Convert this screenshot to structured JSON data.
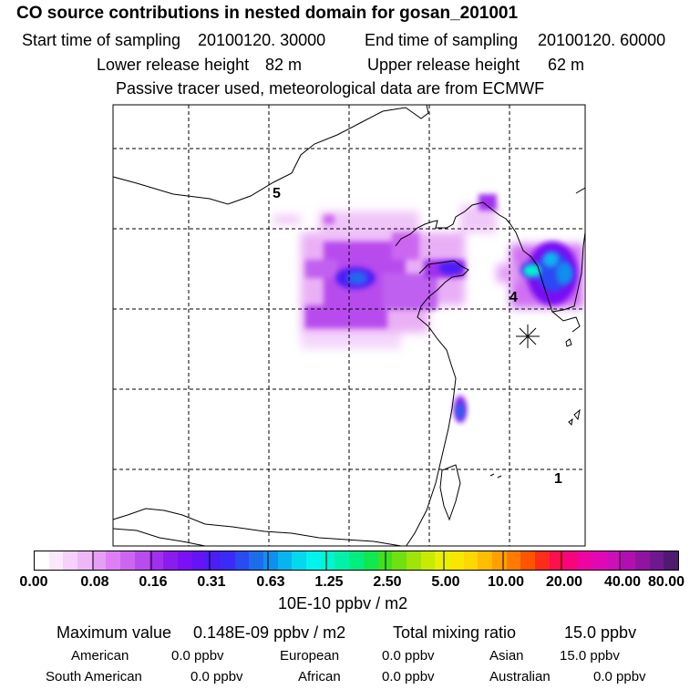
{
  "header": {
    "title": "CO  source contributions in nested domain for gosan_201001",
    "start_label": "Start time of sampling",
    "start_value": "20100120. 30000",
    "end_label": "End time of sampling",
    "end_value": "20100120. 60000",
    "lower_label": "Lower release height",
    "lower_value": "82 m",
    "upper_label": "Upper release height",
    "upper_value": "62 m",
    "info": "Passive tracer used, meteorological data are from ECMWF"
  },
  "map": {
    "markers": [
      "5",
      "4",
      "1"
    ],
    "station_symbol": "asterisk"
  },
  "colorbar": {
    "colors": [
      "#ffffff",
      "#fbe8fd",
      "#f5d1fb",
      "#eeb8f8",
      "#e79ef6",
      "#de80f4",
      "#cc66f0",
      "#b84cee",
      "#a030ee",
      "#8a1cee",
      "#7a10f4",
      "#6414f6",
      "#4c1ef6",
      "#3a2cf6",
      "#2a4af2",
      "#1c6cee",
      "#1090ee",
      "#08b4ee",
      "#04d8ee",
      "#00f4ee",
      "#00f4d0",
      "#00f2a8",
      "#00ee80",
      "#10e850",
      "#40e020",
      "#70e010",
      "#a0e408",
      "#c8ea04",
      "#e8f000",
      "#f8e800",
      "#ffd800",
      "#ffbe00",
      "#ffa000",
      "#ff7c00",
      "#ff5400",
      "#ff2c1c",
      "#ff104c",
      "#f8047c",
      "#ee04a0",
      "#e008b4",
      "#cc10b8",
      "#b010b0",
      "#9014a0",
      "#701890",
      "#501a70"
    ],
    "tick_labels": [
      "0.00",
      "0.08",
      "0.16",
      "0.31",
      "0.63",
      "1.25",
      "2.50",
      "5.00",
      "10.00",
      "20.00",
      "40.00",
      "80.00"
    ],
    "units": "10E-10 ppbv / m2"
  },
  "summary": {
    "max_label": "Maximum value",
    "max_value": "0.148E-09 ppbv / m2",
    "total_label": "Total mixing ratio",
    "total_value": "15.0 ppbv",
    "regions": [
      {
        "name": "American",
        "value": "0.0 ppbv"
      },
      {
        "name": "European",
        "value": "0.0 ppbv"
      },
      {
        "name": "Asian",
        "value": "15.0 ppbv"
      },
      {
        "name": "South American",
        "value": "0.0 ppbv"
      },
      {
        "name": "African",
        "value": "0.0 ppbv"
      },
      {
        "name": "Australian",
        "value": "0.0 ppbv"
      }
    ]
  }
}
